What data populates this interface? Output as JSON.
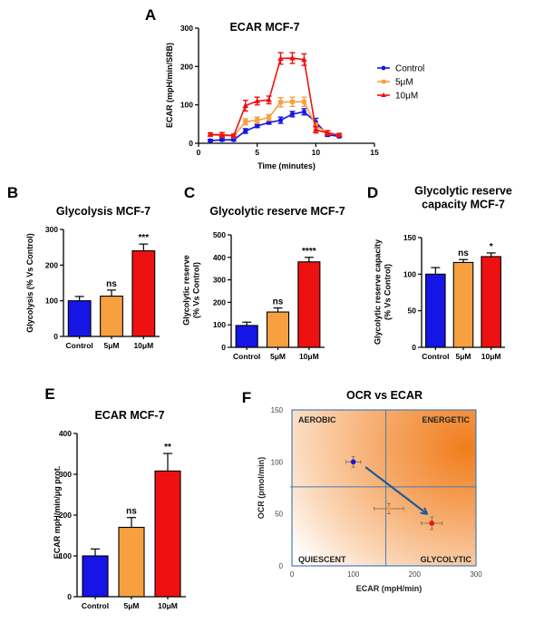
{
  "figure": {
    "colors": {
      "control": "#1515e6",
      "low": "#f7a040",
      "high": "#ee1111",
      "axis": "#000000",
      "f_grid": "#4a7ab5",
      "f_arrow": "#1f5a99",
      "f_orange": "#f08020",
      "f_err": "#8a6a50"
    }
  },
  "chart_data": [
    {
      "id": "A",
      "letter": "A",
      "type": "line",
      "title": "ECAR  MCF-7",
      "xlabel": "Time (minutes)",
      "ylabel": "ECAR (mpH/min/SRB)",
      "xlim": [
        0,
        15
      ],
      "ylim": [
        0,
        300
      ],
      "xticks": [
        "0",
        "5",
        "10",
        "15"
      ],
      "yticks": [
        "0",
        "100",
        "200",
        "300"
      ],
      "legend_position": "right",
      "x": [
        1,
        2,
        3,
        4,
        5,
        6,
        7,
        8,
        9,
        10,
        11,
        12
      ],
      "series": [
        {
          "name": "Control",
          "color_key": "control",
          "marker": "circle",
          "values": [
            7,
            9,
            9,
            32,
            45,
            54,
            60,
            76,
            82,
            55,
            22,
            18
          ],
          "errors": [
            3,
            3,
            3,
            6,
            4,
            4,
            8,
            7,
            8,
            10,
            4,
            3
          ]
        },
        {
          "name": "5μM",
          "color_key": "low",
          "marker": "square",
          "values": [
            22,
            20,
            19,
            56,
            60,
            67,
            107,
            108,
            108,
            45,
            28,
            22
          ],
          "errors": [
            4,
            4,
            3,
            8,
            8,
            8,
            12,
            12,
            12,
            8,
            5,
            4
          ]
        },
        {
          "name": "10μM",
          "color_key": "high",
          "marker": "triangle",
          "values": [
            23,
            22,
            20,
            98,
            110,
            113,
            221,
            222,
            218,
            35,
            27,
            21
          ],
          "errors": [
            4,
            6,
            4,
            14,
            10,
            10,
            15,
            14,
            15,
            8,
            6,
            4
          ]
        }
      ]
    },
    {
      "id": "B",
      "letter": "B",
      "type": "bar",
      "title": "Glycolysis MCF-7",
      "ylabel": "Glycolysis (% Vs Control)",
      "categories": [
        "Control",
        "5μM",
        "10μM"
      ],
      "values": [
        100,
        113,
        240
      ],
      "errors": [
        12,
        17,
        19
      ],
      "significance": [
        "",
        "ns",
        "***"
      ],
      "ylim": [
        0,
        300
      ],
      "yticks": [
        "0",
        "100",
        "200",
        "300"
      ]
    },
    {
      "id": "C",
      "letter": "C",
      "type": "bar",
      "title": "Glycolytic reserve MCF-7",
      "ylabel": "Glycolytic reserve\n(% Vs Control)",
      "categories": [
        "Control",
        "5μM",
        "10μM"
      ],
      "values": [
        97,
        157,
        380
      ],
      "errors": [
        15,
        18,
        20
      ],
      "significance": [
        "",
        "ns",
        "****"
      ],
      "ylim": [
        0,
        500
      ],
      "yticks": [
        "0",
        "100",
        "200",
        "300",
        "400",
        "500"
      ]
    },
    {
      "id": "D",
      "letter": "D",
      "type": "bar",
      "title": "Glycolytic reserve\ncapacity MCF-7",
      "ylabel": "Glycolytic reserve capacity\n(% Vs Control)",
      "categories": [
        "Control",
        "5μM",
        "10μM"
      ],
      "values": [
        100,
        116,
        124
      ],
      "errors": [
        9,
        4,
        5
      ],
      "significance": [
        "",
        "ns",
        "*"
      ],
      "ylim": [
        0,
        150
      ],
      "yticks": [
        "0",
        "50",
        "100",
        "150"
      ]
    },
    {
      "id": "E",
      "letter": "E",
      "type": "bar",
      "title": "ECAR MCF-7",
      "ylabel": "ECAR mpH/min/μg prot.",
      "categories": [
        "Control",
        "5μM",
        "10μM"
      ],
      "values": [
        100,
        170,
        308
      ],
      "errors": [
        17,
        24,
        43
      ],
      "significance": [
        "",
        "ns",
        "**"
      ],
      "ylim": [
        0,
        400
      ],
      "yticks": [
        "0",
        "100",
        "200",
        "300",
        "400"
      ]
    },
    {
      "id": "F",
      "letter": "F",
      "type": "scatter",
      "title": "OCR vs ECAR",
      "xlabel": "ECAR (mpH/min)",
      "ylabel": "OCR (pmol/min)",
      "xlim": [
        0,
        300
      ],
      "ylim": [
        0,
        150
      ],
      "xticks": [
        "0",
        "100",
        "200",
        "300"
      ],
      "yticks": [
        "0",
        "50",
        "100",
        "150"
      ],
      "quadrant_divider": {
        "x": 153,
        "y": 76
      },
      "quadrants": [
        "AEROBIC",
        "ENERGETIC",
        "QUIESCENT",
        "GLYCOLYTIC"
      ],
      "points": [
        {
          "name": "Control",
          "color_key": "control",
          "x": 100,
          "y": 100,
          "xerr": 12,
          "yerr": 5
        },
        {
          "name": "5μM",
          "color_key": "low",
          "x": 158,
          "y": 55,
          "xerr": 24,
          "yerr": 5
        },
        {
          "name": "10μM",
          "color_key": "high",
          "x": 228,
          "y": 41,
          "xerr": 17,
          "yerr": 6
        }
      ],
      "arrow": {
        "from": [
          120,
          95
        ],
        "to": [
          218,
          51
        ]
      }
    }
  ]
}
